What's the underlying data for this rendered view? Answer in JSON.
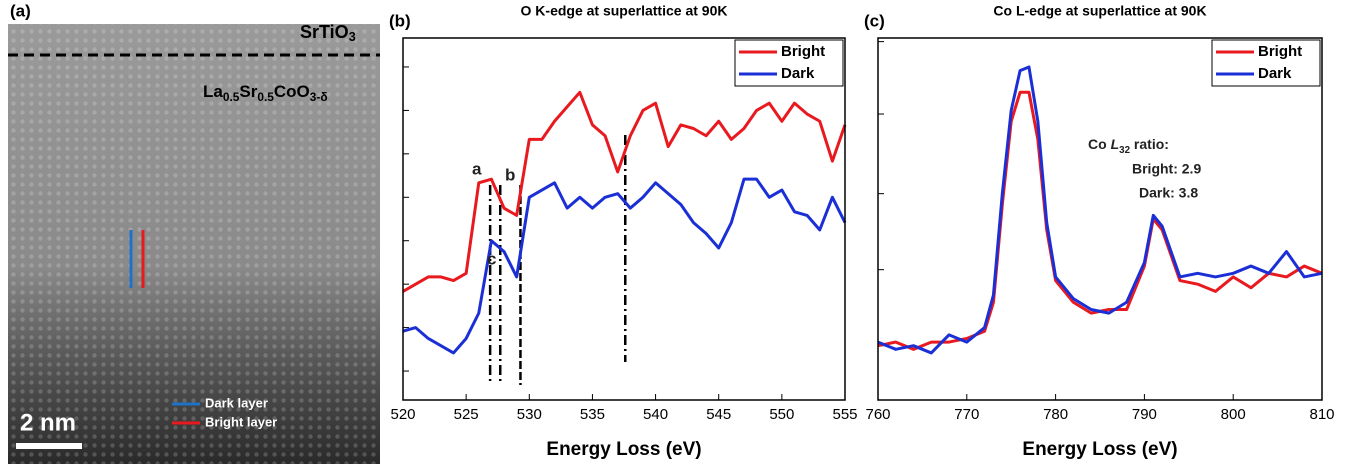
{
  "image_panel": {
    "panel_label": "(a)",
    "top_layer": [
      "SrTiO",
      "3"
    ],
    "film": [
      "La",
      "0.5",
      "Sr",
      "0.5",
      "CoO",
      "3-δ"
    ],
    "legend": [
      "Dark layer",
      "Bright layer"
    ],
    "scale_bar": "2 nm"
  },
  "chart_data": [
    {
      "type": "line",
      "panel_label": "(b)",
      "title": "O K-edge at superlattice at 90K",
      "xlabel": "Energy Loss (eV)",
      "x": [
        520,
        521,
        522,
        523,
        524,
        525,
        526,
        527,
        528,
        529,
        530,
        531,
        532,
        533,
        534,
        535,
        536,
        537,
        538,
        539,
        540,
        541,
        542,
        543,
        544,
        545,
        546,
        547,
        548,
        549,
        550,
        551,
        552,
        553,
        554,
        555
      ],
      "series": [
        {
          "name": "Bright",
          "color": "#e8191f",
          "values": [
            3.0,
            3.2,
            3.4,
            3.4,
            3.3,
            3.5,
            6.0,
            6.1,
            5.3,
            5.1,
            7.2,
            7.2,
            7.7,
            8.1,
            8.5,
            7.6,
            7.3,
            6.3,
            7.3,
            8.0,
            8.2,
            7.0,
            7.6,
            7.5,
            7.3,
            7.7,
            7.2,
            7.5,
            8.0,
            8.2,
            7.7,
            8.2,
            7.9,
            7.7,
            6.6,
            7.6
          ]
        },
        {
          "name": "Dark",
          "color": "#1b2fd6",
          "values": [
            1.9,
            2.0,
            1.7,
            1.5,
            1.3,
            1.7,
            2.4,
            4.4,
            4.1,
            3.4,
            5.6,
            5.8,
            6.0,
            5.3,
            5.6,
            5.3,
            5.6,
            5.7,
            5.3,
            5.6,
            6.0,
            5.7,
            5.4,
            4.9,
            4.6,
            4.2,
            4.9,
            6.1,
            6.1,
            5.6,
            5.8,
            5.2,
            5.1,
            4.7,
            5.6,
            4.9
          ]
        }
      ],
      "xlim": [
        520,
        555
      ],
      "xticks": [
        520,
        525,
        530,
        535,
        540,
        545,
        550,
        555
      ],
      "ylim": [
        0,
        10
      ],
      "yticks": [
        0.8,
        2.0,
        3.2,
        4.4,
        5.6,
        6.8,
        8.0,
        9.2
      ],
      "vlines": [
        526.9,
        527.7,
        529.3,
        537.6
      ],
      "annotations": [
        "a",
        "b",
        "c"
      ],
      "legend": "upper right"
    },
    {
      "type": "line",
      "panel_label": "(c)",
      "title": "Co L-edge at superlattice at 90K",
      "xlabel": "Energy Loss (eV)",
      "x": [
        760,
        762,
        764,
        766,
        768,
        770,
        772,
        773,
        774,
        775,
        776,
        777,
        778,
        779,
        780,
        782,
        784,
        786,
        788,
        790,
        791,
        792,
        794,
        796,
        798,
        800,
        802,
        804,
        806,
        808,
        810
      ],
      "series": [
        {
          "name": "Bright",
          "color": "#e8191f",
          "values": [
            1.5,
            1.6,
            1.4,
            1.6,
            1.6,
            1.7,
            1.9,
            2.7,
            5.4,
            7.7,
            8.5,
            8.5,
            7.2,
            4.7,
            3.3,
            2.7,
            2.4,
            2.5,
            2.5,
            3.7,
            5.0,
            4.7,
            3.3,
            3.2,
            3.0,
            3.4,
            3.1,
            3.5,
            3.4,
            3.7,
            3.5
          ]
        },
        {
          "name": "Dark",
          "color": "#1b2fd6",
          "values": [
            1.6,
            1.4,
            1.5,
            1.3,
            1.8,
            1.6,
            2.0,
            2.9,
            5.7,
            8.0,
            9.1,
            9.2,
            7.7,
            4.9,
            3.4,
            2.8,
            2.5,
            2.4,
            2.7,
            3.8,
            5.1,
            4.8,
            3.4,
            3.5,
            3.4,
            3.5,
            3.7,
            3.5,
            4.1,
            3.4,
            3.5
          ]
        }
      ],
      "xlim": [
        760,
        810
      ],
      "xticks": [
        760,
        770,
        780,
        790,
        800,
        810
      ],
      "ylim": [
        0,
        10
      ],
      "yticks": [
        1.5,
        3.6,
        5.7,
        7.9,
        9.9
      ],
      "annotations": [
        [
          "Co ",
          "L",
          "32",
          " ratio:"
        ],
        "Bright: 2.9",
        "Dark: 3.8"
      ],
      "legend": "upper right"
    }
  ]
}
